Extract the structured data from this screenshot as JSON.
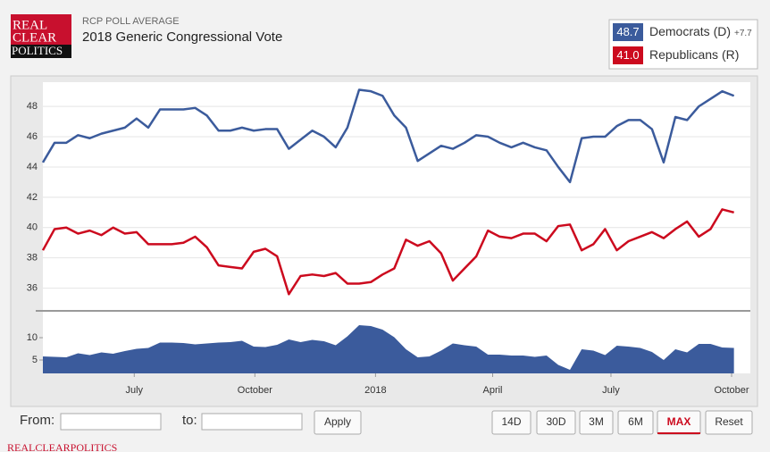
{
  "header": {
    "logo": [
      "REAL",
      "CLEAR",
      "POLITICS"
    ],
    "subtitle": "RCP POLL AVERAGE",
    "title": "2018 Generic Congressional Vote"
  },
  "chart_data": [
    {
      "type": "line",
      "xlim": [
        0,
        60.4
      ],
      "ylim": [
        34.5,
        49.6
      ],
      "yticks": [
        36,
        38,
        40,
        42,
        44,
        46,
        48
      ],
      "grid": true,
      "series": [
        {
          "name": "Democrats (D)",
          "color": "#3b5b9c",
          "last_label": "48.7",
          "spread_label": "+7.7",
          "values": [
            44.3,
            45.6,
            45.6,
            46.1,
            45.9,
            46.2,
            46.4,
            46.6,
            47.2,
            46.6,
            47.8,
            47.8,
            47.8,
            47.9,
            47.4,
            46.4,
            46.4,
            46.6,
            46.4,
            46.5,
            46.5,
            45.2,
            45.8,
            46.4,
            46.0,
            45.3,
            46.6,
            49.1,
            49.0,
            48.7,
            47.4,
            46.6,
            44.4,
            44.9,
            45.4,
            45.2,
            45.6,
            46.1,
            46.0,
            45.6,
            45.3,
            45.6,
            45.3,
            45.1,
            44.0,
            43.0,
            45.9,
            46.0,
            46.0,
            46.7,
            47.1,
            47.1,
            46.5,
            44.3,
            47.3,
            47.1,
            48.0,
            48.5,
            49.0,
            48.7
          ]
        },
        {
          "name": "Republicans (R)",
          "color": "#cc0a1e",
          "last_label": "41.0",
          "values": [
            38.5,
            39.9,
            40.0,
            39.6,
            39.8,
            39.5,
            40.0,
            39.6,
            39.7,
            38.9,
            38.9,
            38.9,
            39.0,
            39.4,
            38.7,
            37.5,
            37.4,
            37.3,
            38.4,
            38.6,
            38.1,
            35.6,
            36.8,
            36.9,
            36.8,
            37.0,
            36.3,
            36.3,
            36.4,
            36.9,
            37.3,
            39.2,
            38.8,
            39.1,
            38.3,
            36.5,
            37.3,
            38.1,
            39.8,
            39.4,
            39.3,
            39.6,
            39.6,
            39.1,
            40.1,
            40.2,
            38.5,
            38.9,
            39.9,
            38.5,
            39.1,
            39.4,
            39.7,
            39.3,
            39.9,
            40.4,
            39.4,
            39.9,
            41.2,
            41.0
          ]
        }
      ]
    },
    {
      "type": "area",
      "xlim": [
        0,
        60.4
      ],
      "ylim": [
        2,
        15.6
      ],
      "yticks": [
        5,
        10
      ],
      "xticks": [
        {
          "value": 7.8,
          "label": "July"
        },
        {
          "value": 18.1,
          "label": "October"
        },
        {
          "value": 28.4,
          "label": "2018"
        },
        {
          "value": 38.4,
          "label": "April"
        },
        {
          "value": 48.5,
          "label": "July"
        },
        {
          "value": 58.8,
          "label": "October"
        }
      ],
      "color": "#3b5b9c",
      "values": [
        5.8,
        5.7,
        5.6,
        6.5,
        6.1,
        6.7,
        6.4,
        7.0,
        7.5,
        7.7,
        8.9,
        8.9,
        8.8,
        8.5,
        8.7,
        8.9,
        9.0,
        9.3,
        8.0,
        7.9,
        8.4,
        9.6,
        9.0,
        9.5,
        9.2,
        8.3,
        10.3,
        12.8,
        12.6,
        11.8,
        10.1,
        7.4,
        5.6,
        5.8,
        7.1,
        8.7,
        8.3,
        8.0,
        6.2,
        6.2,
        6.0,
        6.0,
        5.7,
        6.0,
        3.9,
        2.8,
        7.4,
        7.1,
        6.1,
        8.2,
        8.0,
        7.7,
        6.8,
        5.0,
        7.4,
        6.7,
        8.6,
        8.6,
        7.8,
        7.7
      ]
    }
  ],
  "controls": {
    "from": "From:",
    "to": "to:",
    "apply": "Apply",
    "ranges": [
      "14D",
      "30D",
      "3M",
      "6M",
      "MAX",
      "Reset"
    ]
  },
  "footer": "REALCLEARPOLITICS"
}
